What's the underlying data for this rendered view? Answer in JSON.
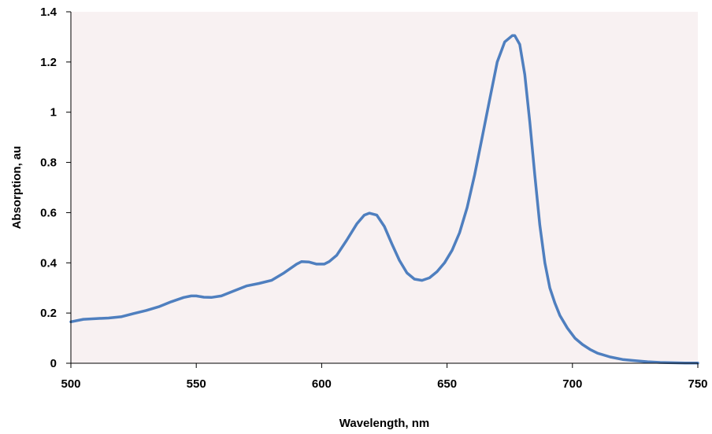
{
  "chart_data": {
    "type": "line",
    "xlabel": "Wavelength, nm",
    "ylabel": "Absorption, au",
    "xlim": [
      500,
      750
    ],
    "ylim": [
      0,
      1.4
    ],
    "x_ticks": [
      "500",
      "550",
      "600",
      "650",
      "700",
      "750"
    ],
    "y_ticks": [
      "0",
      "0.2",
      "0.4",
      "0.6",
      "0.8",
      "1",
      "1.2",
      "1.4"
    ],
    "grid": false,
    "legend": "none",
    "colors": {
      "plot_background": "#f8f1f2",
      "line": "#4f7fbf",
      "axis": "#000000"
    },
    "series": [
      {
        "x": [
          500,
          505,
          510,
          515,
          520,
          525,
          530,
          535,
          540,
          545,
          548,
          550,
          553,
          556,
          560,
          565,
          570,
          575,
          580,
          585,
          590,
          592,
          595,
          598,
          601,
          603,
          606,
          610,
          614,
          617,
          619,
          622,
          625,
          628,
          631,
          634,
          637,
          640,
          643,
          646,
          649,
          652,
          655,
          658,
          661,
          664,
          667,
          670,
          673,
          676,
          677,
          679,
          681,
          683,
          685,
          687,
          689,
          691,
          693,
          695,
          698,
          701,
          704,
          707,
          710,
          715,
          720,
          725,
          730,
          735,
          740,
          745,
          750
        ],
        "y": [
          0.165,
          0.175,
          0.178,
          0.18,
          0.185,
          0.198,
          0.21,
          0.225,
          0.245,
          0.262,
          0.268,
          0.268,
          0.263,
          0.262,
          0.268,
          0.288,
          0.308,
          0.318,
          0.33,
          0.36,
          0.395,
          0.405,
          0.403,
          0.395,
          0.395,
          0.405,
          0.43,
          0.49,
          0.555,
          0.59,
          0.598,
          0.59,
          0.545,
          0.475,
          0.41,
          0.36,
          0.335,
          0.33,
          0.34,
          0.365,
          0.4,
          0.45,
          0.52,
          0.62,
          0.75,
          0.9,
          1.05,
          1.2,
          1.28,
          1.305,
          1.305,
          1.27,
          1.15,
          0.96,
          0.75,
          0.55,
          0.4,
          0.3,
          0.24,
          0.19,
          0.14,
          0.1,
          0.075,
          0.055,
          0.04,
          0.025,
          0.015,
          0.01,
          0.006,
          0.003,
          0.002,
          0.001,
          0.001
        ]
      }
    ]
  }
}
